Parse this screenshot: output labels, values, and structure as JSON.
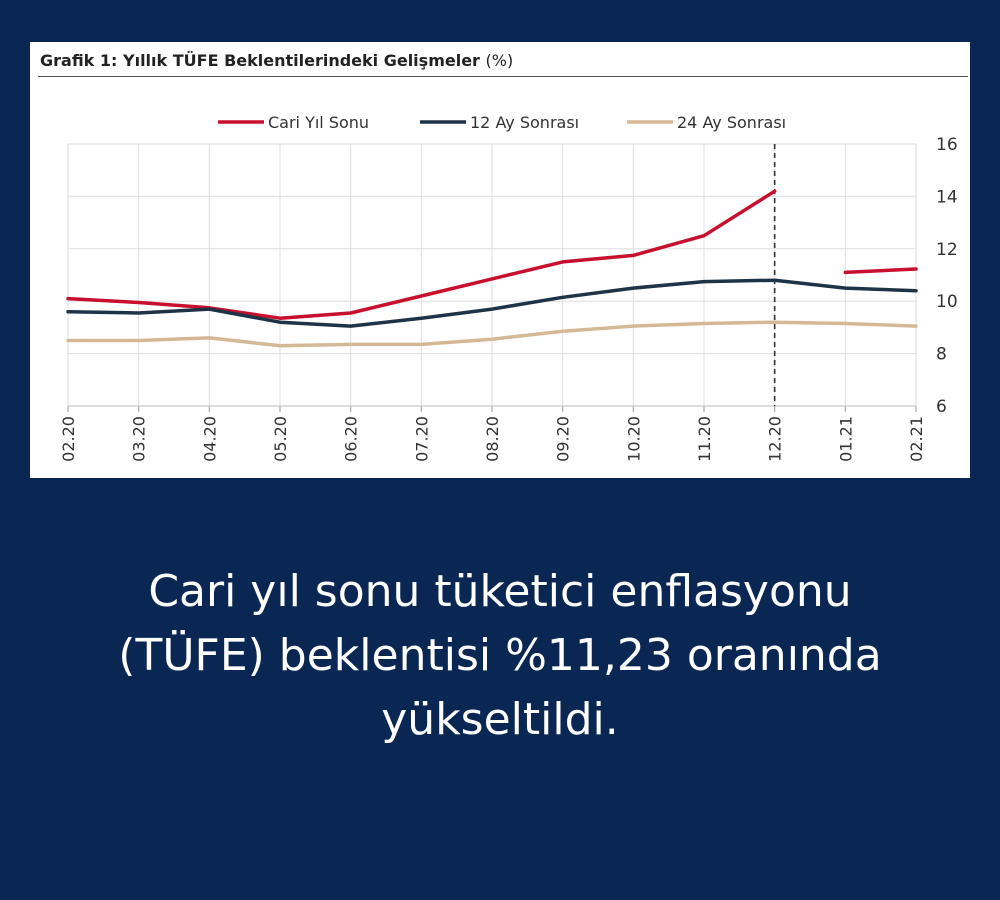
{
  "chart_title": "Grafik 1: Yıllık TÜFE Beklentilerindeki Gelişmeler",
  "chart_unit": "(%)",
  "caption": {
    "line1": "Cari yıl sonu tüketici enflasyonu",
    "line2": "(TÜFE) beklentisi %11,23 oranında",
    "line3": "yükseltildi."
  },
  "chart_data": {
    "type": "line",
    "title": "Grafik 1: Yıllık TÜFE Beklentilerindeki Gelişmeler (%)",
    "xlabel": "",
    "ylabel": "",
    "categories": [
      "02.20",
      "03.20",
      "04.20",
      "05.20",
      "06.20",
      "07.20",
      "08.20",
      "09.20",
      "10.20",
      "11.20",
      "12.20",
      "01.21",
      "02.21"
    ],
    "ylim": [
      6,
      16
    ],
    "yticks": [
      6,
      8,
      10,
      12,
      14,
      16
    ],
    "y_axis_position": "right",
    "grid": true,
    "legend_position": "top",
    "vertical_marker": "12.20",
    "series": [
      {
        "name": "Cari Yıl Sonu",
        "color": "#c8102e",
        "values": [
          10.1,
          9.95,
          9.75,
          9.35,
          9.55,
          10.2,
          10.85,
          11.5,
          11.75,
          12.5,
          14.2,
          11.1,
          11.23
        ]
      },
      {
        "name": "12 Ay Sonrası",
        "color": "#1f3348",
        "values": [
          9.6,
          9.55,
          9.7,
          9.2,
          9.05,
          9.35,
          9.7,
          10.15,
          10.5,
          10.75,
          10.8,
          10.5,
          10.4
        ]
      },
      {
        "name": "24 Ay Sonrası",
        "color": "#d5b996",
        "values": [
          8.5,
          8.5,
          8.6,
          8.3,
          8.35,
          8.35,
          8.55,
          8.85,
          9.05,
          9.15,
          9.2,
          9.15,
          9.05
        ]
      }
    ],
    "series_break_after": "12.20"
  }
}
